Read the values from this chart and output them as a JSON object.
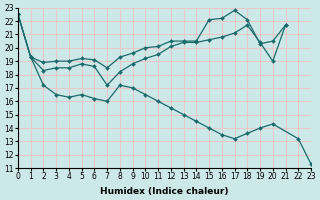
{
  "xlabel": "Humidex (Indice chaleur)",
  "xlim": [
    0,
    23
  ],
  "ylim": [
    11,
    23
  ],
  "yticks": [
    11,
    12,
    13,
    14,
    15,
    16,
    17,
    18,
    19,
    20,
    21,
    22,
    23
  ],
  "xticks": [
    0,
    1,
    2,
    3,
    4,
    5,
    6,
    7,
    8,
    9,
    10,
    11,
    12,
    13,
    14,
    15,
    16,
    17,
    18,
    19,
    20,
    21,
    22,
    23
  ],
  "bg_color": "#cde8e8",
  "grid_color": "#e8c8c8",
  "line_color": "#1a6b6b",
  "lines": [
    {
      "x": [
        0,
        1,
        2,
        3,
        4,
        5,
        6,
        7,
        8,
        9,
        10,
        11,
        12,
        13,
        14,
        15,
        16,
        17,
        18,
        19,
        20,
        21
      ],
      "y": [
        22.5,
        19.3,
        18.9,
        19.0,
        19.0,
        19.2,
        19.1,
        18.5,
        19.3,
        19.6,
        20.0,
        20.1,
        20.5,
        20.5,
        20.5,
        22.1,
        22.2,
        22.8,
        22.1,
        20.3,
        20.5,
        21.7
      ]
    },
    {
      "x": [
        0,
        1,
        2,
        3,
        4,
        5,
        6,
        7,
        8,
        9,
        10,
        11,
        12,
        13,
        14,
        15,
        16,
        17,
        18,
        19,
        20,
        21
      ],
      "y": [
        22.5,
        19.3,
        18.3,
        18.5,
        18.5,
        18.8,
        18.6,
        17.2,
        18.2,
        18.8,
        19.2,
        19.5,
        20.1,
        20.4,
        20.4,
        20.6,
        20.8,
        21.1,
        21.7,
        20.4,
        19.0,
        21.7
      ]
    },
    {
      "x": [
        0,
        1,
        2,
        3,
        4,
        5,
        6,
        7,
        8,
        9,
        10,
        11,
        12,
        13,
        14,
        15,
        16,
        17,
        18,
        19,
        20,
        22,
        23
      ],
      "y": [
        22.5,
        19.3,
        17.2,
        16.5,
        16.3,
        16.5,
        16.2,
        16.0,
        17.2,
        17.0,
        16.5,
        16.0,
        15.5,
        15.0,
        14.5,
        14.0,
        13.5,
        13.2,
        13.6,
        14.0,
        14.3,
        13.2,
        11.3
      ]
    }
  ]
}
